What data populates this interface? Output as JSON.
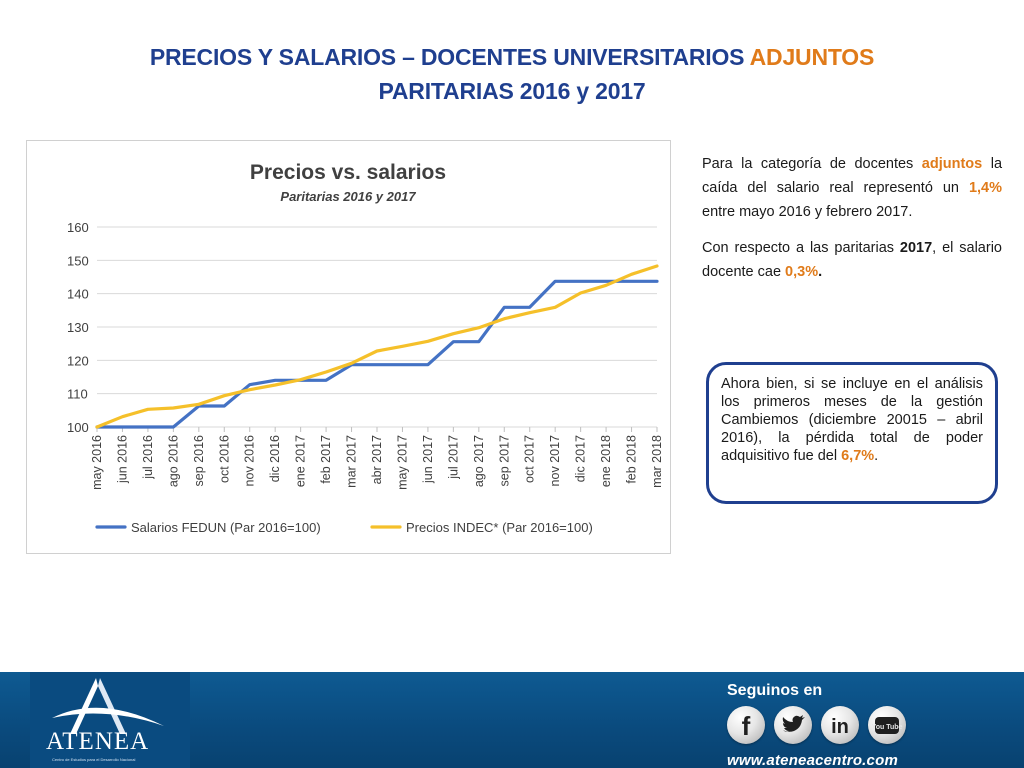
{
  "slide": {
    "title_line1_main": "PRECIOS Y SALARIOS – DOCENTES UNIVERSITARIOS",
    "title_line1_accent": "ADJUNTOS",
    "title_line2": "PARITARIAS 2016 y 2017"
  },
  "text": {
    "p1": {
      "a": "Para la categoría de docentes",
      "b": "adjuntos",
      "c": "la caída del salario real representó un",
      "d": "1,4%",
      "e": "entre mayo 2016 y febrero 2017."
    },
    "p2": {
      "a": "Con respecto a las paritarias",
      "b": "2017",
      "c": ", el salario docente cae",
      "d": "0,3%",
      "e": "."
    },
    "callout": {
      "a": "Ahora bien, si se incluye en el análisis los primeros meses de la gestión Cambiemos (diciembre 20015 – abril 2016), la pérdida total de poder adquisitivo fue del",
      "b": "6,7%",
      "c": "."
    }
  },
  "footer": {
    "logo_text": "ATENEA",
    "logo_tagline": "Centro de Estudios para el Desarrollo Nacional",
    "follow_label": "Seguinos en",
    "social": [
      {
        "name": "facebook",
        "icon": "facebook-icon"
      },
      {
        "name": "twitter",
        "icon": "twitter-icon"
      },
      {
        "name": "linkedin",
        "icon": "linkedin-icon"
      },
      {
        "name": "youtube",
        "icon": "youtube-icon"
      }
    ],
    "youtube_label": "You Tube",
    "linkedin_label": "in",
    "facebook_label": "f",
    "url": "www.ateneacentro.com"
  },
  "colors": {
    "title": "#1f3f8f",
    "accent": "#e07b1a",
    "salarios": "#4472c4",
    "precios": "#f5c02a",
    "footer": "#0a4a7d"
  },
  "chart_data": {
    "type": "line",
    "title": "Precios vs. salarios",
    "subtitle": "Paritarias 2016 y 2017",
    "categories": [
      "may 2016",
      "jun 2016",
      "jul 2016",
      "ago 2016",
      "sep 2016",
      "oct 2016",
      "nov 2016",
      "dic 2016",
      "ene 2017",
      "feb 2017",
      "mar 2017",
      "abr 2017",
      "may 2017",
      "jun 2017",
      "jul 2017",
      "ago 2017",
      "sep 2017",
      "oct 2017",
      "nov 2017",
      "dic 2017",
      "ene 2018",
      "feb 2018",
      "mar 2018"
    ],
    "ylim": [
      100,
      160
    ],
    "yticks": [
      100,
      110,
      120,
      130,
      140,
      150,
      160
    ],
    "grid": true,
    "legend_position": "bottom",
    "series": [
      {
        "name": "Salarios FEDUN (Par 2016=100)",
        "color": "#4472c4",
        "values": [
          100,
          100,
          100,
          100,
          106.3,
          106.3,
          112.7,
          114,
          114,
          114,
          118.7,
          118.7,
          118.7,
          118.7,
          125.6,
          125.6,
          135.9,
          135.9,
          143.7,
          143.7,
          143.7,
          143.7,
          143.7
        ]
      },
      {
        "name": "Precios INDEC* (Par 2016=100)",
        "color": "#f5c02a",
        "values": [
          100,
          103.1,
          105.3,
          105.7,
          106.8,
          109.4,
          111.2,
          112.6,
          114.2,
          116.5,
          119.1,
          122.8,
          124.2,
          125.7,
          128,
          129.8,
          132.5,
          134.3,
          135.9,
          140.2,
          142.5,
          145.8,
          148.3
        ]
      }
    ]
  }
}
